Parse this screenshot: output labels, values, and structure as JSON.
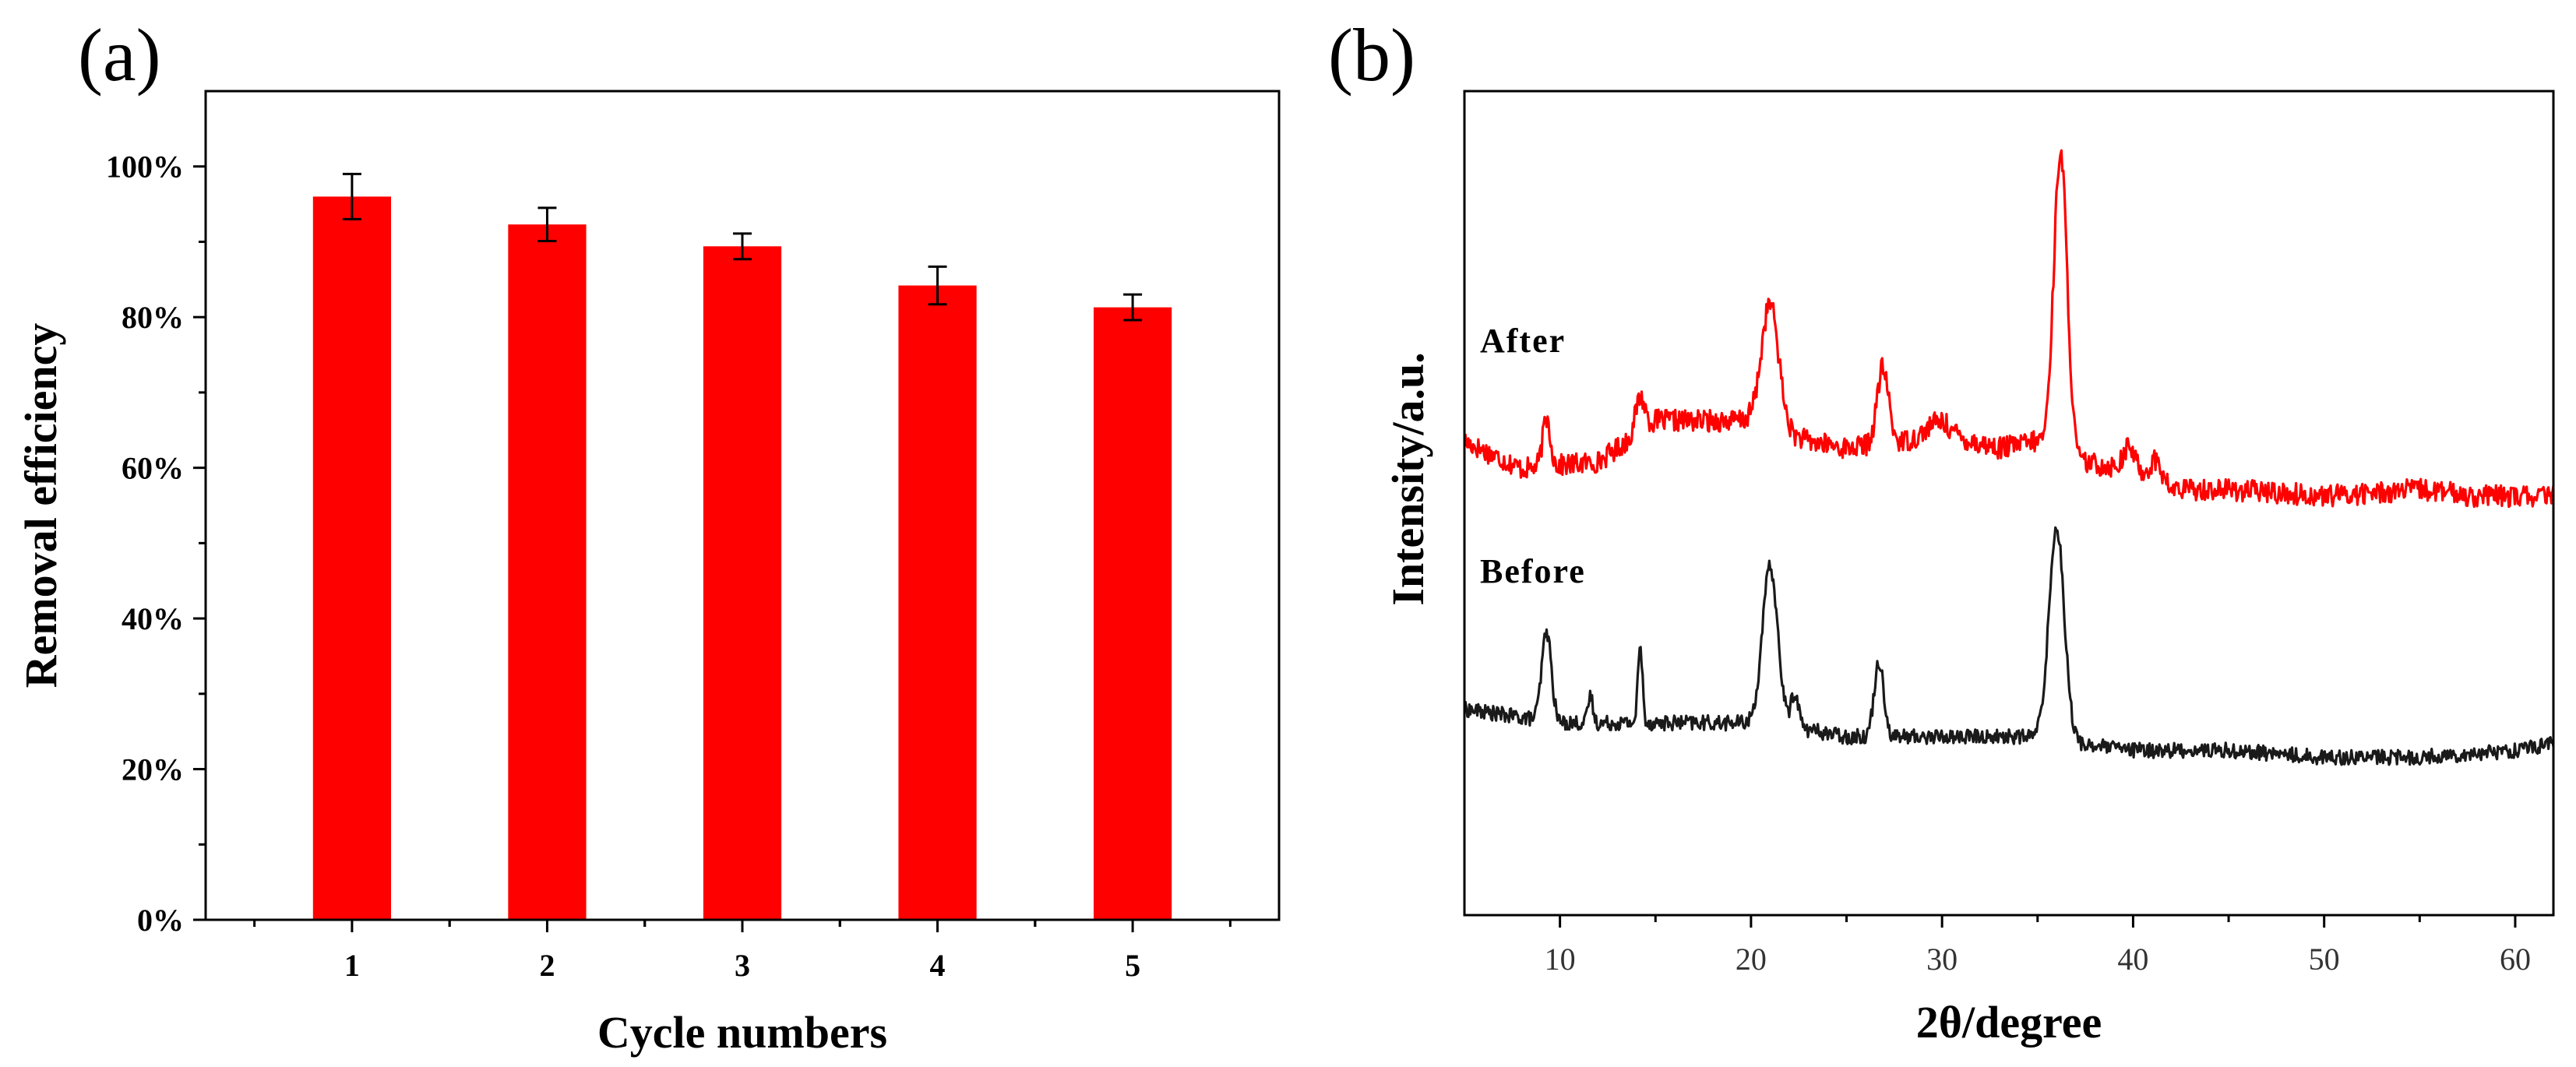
{
  "chart_data": [
    {
      "type": "bar",
      "panel_label": "(a)",
      "categories": [
        "1",
        "2",
        "3",
        "4",
        "5"
      ],
      "values": [
        96,
        92.3,
        89.4,
        84.2,
        81.3
      ],
      "errors": [
        3,
        2.2,
        1.7,
        2.5,
        1.7
      ],
      "ylim": [
        0,
        110
      ],
      "yticks": [
        0,
        20,
        40,
        60,
        80,
        100
      ],
      "ytick_labels": [
        "0%",
        "20%",
        "40%",
        "60%",
        "80%",
        "100%"
      ],
      "xlabel": "Cycle numbers",
      "ylabel": "Removal efficiency",
      "bar_color": "#ff0000"
    },
    {
      "type": "line",
      "panel_label": "(b)",
      "xlim": [
        5,
        62
      ],
      "xticks": [
        10,
        20,
        30,
        40,
        50,
        60
      ],
      "xtick_labels": [
        "10",
        "20",
        "30",
        "40",
        "50",
        "60"
      ],
      "ylim": [
        0,
        120
      ],
      "xlabel": "2θ/degree",
      "ylabel": "Intensity/a.u.",
      "series": [
        {
          "name": "After",
          "color": "#ff0000",
          "baseline": [
            [
              5,
              69
            ],
            [
              8,
              65
            ],
            [
              12,
              66
            ],
            [
              15,
              72
            ],
            [
              18,
              72
            ],
            [
              20,
              72
            ],
            [
              23,
              69
            ],
            [
              25,
              68
            ],
            [
              28,
              69
            ],
            [
              30,
              70
            ],
            [
              33,
              68
            ],
            [
              35,
              69
            ],
            [
              37,
              66
            ],
            [
              40,
              65
            ],
            [
              42,
              62
            ],
            [
              45,
              62
            ],
            [
              50,
              61
            ],
            [
              55,
              62
            ],
            [
              58,
              61
            ],
            [
              62,
              61
            ]
          ],
          "peaks": [
            [
              9.3,
              7,
              0.2
            ],
            [
              14.2,
              5,
              0.25
            ],
            [
              21.0,
              18,
              0.45
            ],
            [
              26.9,
              11,
              0.3
            ],
            [
              29.8,
              2,
              0.6
            ],
            [
              36.2,
              44,
              0.35
            ],
            [
              39.8,
              3,
              0.3
            ],
            [
              41.2,
              3,
              0.3
            ]
          ]
        },
        {
          "name": "Before",
          "color": "#1a1a1a",
          "baseline": [
            [
              5,
              30
            ],
            [
              10,
              28
            ],
            [
              15,
              28
            ],
            [
              20,
              28
            ],
            [
              23,
              27
            ],
            [
              25,
              26
            ],
            [
              30,
              26
            ],
            [
              35,
              26
            ],
            [
              37,
              25
            ],
            [
              40,
              24
            ],
            [
              45,
              24
            ],
            [
              50,
              23
            ],
            [
              55,
              23
            ],
            [
              60,
              24
            ],
            [
              62,
              25
            ]
          ],
          "peaks": [
            [
              9.3,
              13,
              0.25
            ],
            [
              11.6,
              4,
              0.12
            ],
            [
              14.2,
              11,
              0.12
            ],
            [
              21.0,
              23,
              0.4
            ],
            [
              22.3,
              5,
              0.2
            ],
            [
              26.7,
              11,
              0.25
            ],
            [
              36.0,
              31,
              0.4
            ]
          ]
        }
      ]
    }
  ]
}
